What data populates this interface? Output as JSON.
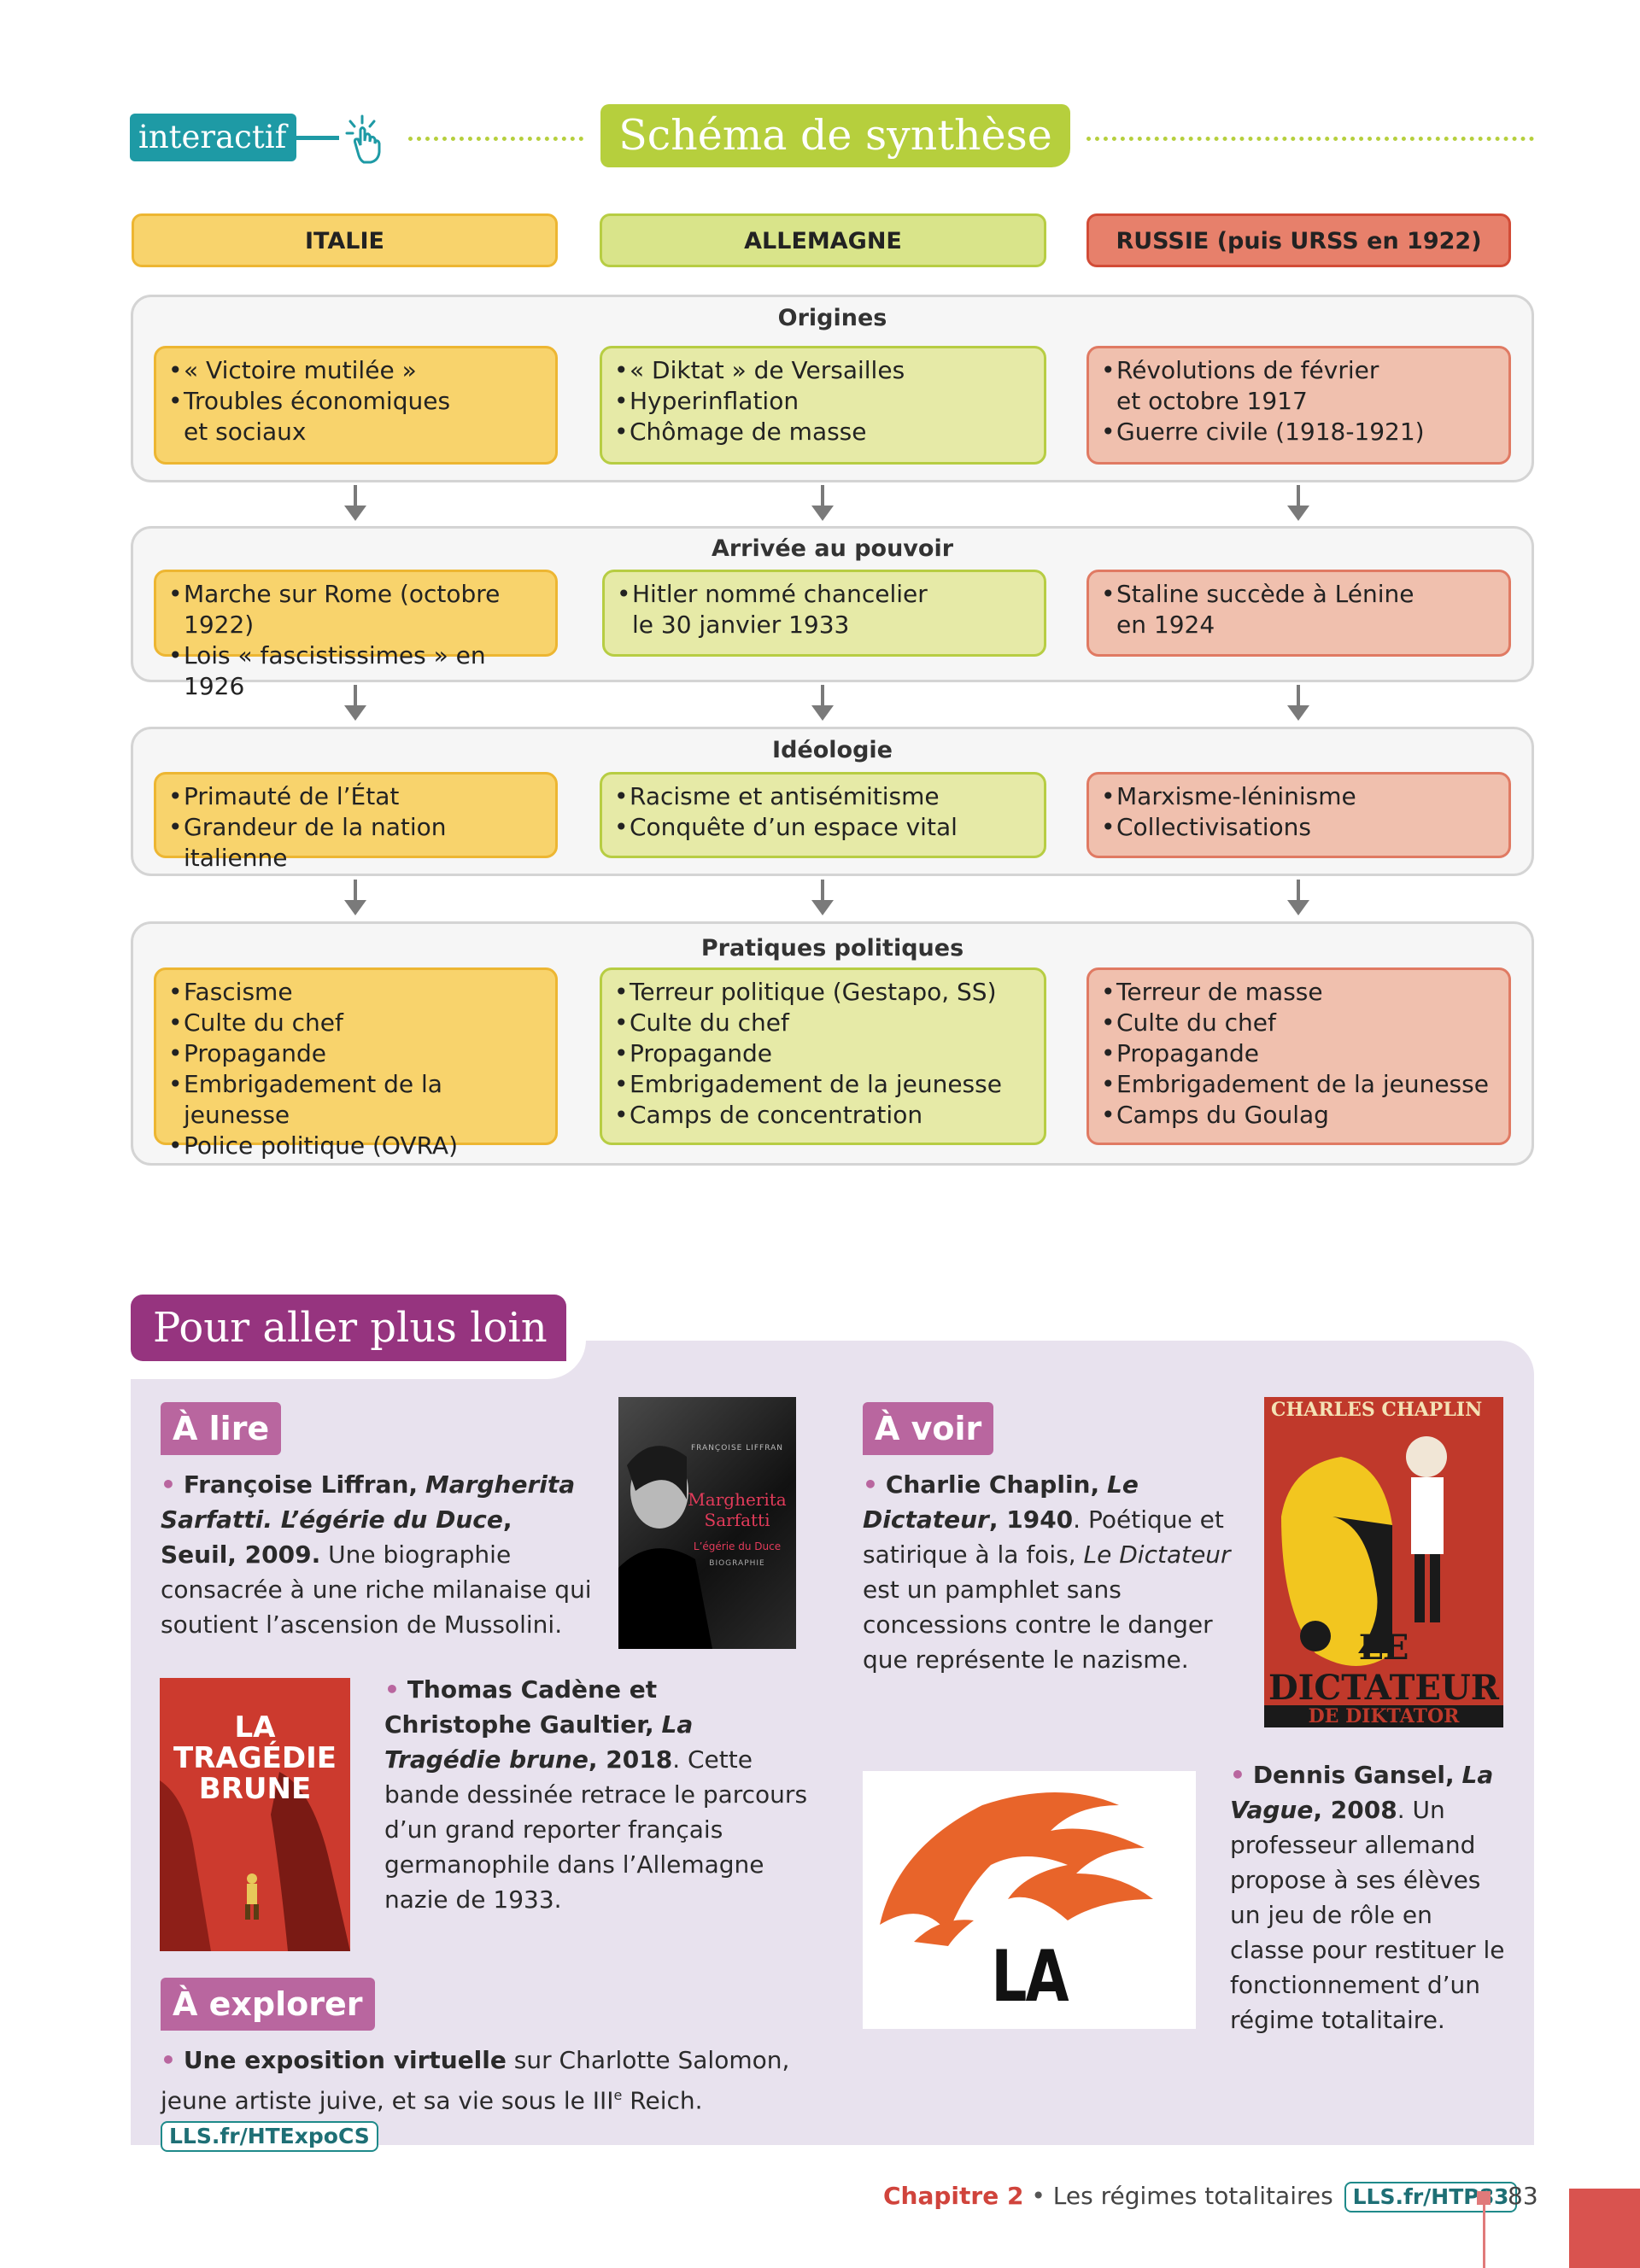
{
  "header": {
    "interactif_label": "interactif",
    "title": "Schéma de synthèse",
    "accent_color": "#b6cf3d",
    "interactif_color": "#1e9aa5"
  },
  "columns": {
    "italie": "ITALIE",
    "allemagne": "ALLEMAGNE",
    "russie": "RUSSIE (puis URSS en 1922)"
  },
  "sections": {
    "origines": {
      "title": "Origines",
      "italie": [
        "« Victoire mutilée »",
        "Troubles économiques \net sociaux"
      ],
      "allemagne": [
        "« Diktat » de Versailles",
        "Hyperinflation",
        "Chômage de masse"
      ],
      "russie": [
        "Révolutions de février\net octobre 1917",
        "Guerre civile (1918-1921)"
      ]
    },
    "arrivee": {
      "title": "Arrivée au pouvoir",
      "italie": [
        "Marche sur Rome (octobre 1922)",
        "Lois « fascistissimes » en 1926"
      ],
      "allemagne": [
        "Hitler nommé chancelier\nle 30 janvier 1933"
      ],
      "russie": [
        "Staline succède à Lénine\nen 1924"
      ]
    },
    "ideologie": {
      "title": "Idéologie",
      "italie": [
        "Primauté de l’État",
        "Grandeur de la nation italienne"
      ],
      "allemagne": [
        "Racisme et antisémitisme",
        "Conquête d’un espace vital"
      ],
      "russie": [
        "Marxisme-léninisme",
        "Collectivisations"
      ]
    },
    "pratiques": {
      "title": "Pratiques politiques",
      "italie": [
        "Fascisme",
        "Culte du chef",
        "Propagande",
        "Embrigadement de la jeunesse",
        "Police politique (OVRA)"
      ],
      "allemagne": [
        "Terreur politique (Gestapo, SS)",
        "Culte du chef",
        "Propagande",
        "Embrigadement de la jeunesse",
        "Camps de concentration"
      ],
      "russie": [
        "Terreur de masse",
        "Culte du chef",
        "Propagande",
        "Embrigadement de la jeunesse",
        "Camps du Goulag"
      ]
    }
  },
  "pour_aller_plus_loin": {
    "title": "Pour aller plus loin",
    "a_lire": {
      "label": "À lire",
      "book1": {
        "author": "Françoise Liffran,",
        "title": "Margherita Sarfatti. L’égérie du Duce",
        "publisher": ", Seuil, 2009.",
        "description": "Une biographie consacrée à une riche milanaise qui soutient l’ascension de Mussolini.",
        "cover_author": "FRANÇOISE LIFFRAN",
        "cover_title": "Margherita Sarfatti",
        "cover_subtitle": "L’égérie du Duce",
        "cover_genre": "BIOGRAPHIE"
      },
      "book2": {
        "author": "Thomas Cadène et Christophe Gaultier,",
        "title": "La Tragédie brune",
        "year": ", 2018",
        "description": "Cette bande dessinée retrace le parcours d’un grand reporter français germanophile dans l’Allemagne nazie de 1933.",
        "cover_title": "LA TRAGÉDIE BRUNE"
      }
    },
    "a_voir": {
      "label": "À voir",
      "film1": {
        "author": "Charlie Chaplin,",
        "title": "Le Dictateur",
        "year": ", 1940",
        "description_a": ". Poétique et satirique à la fois,",
        "description_title": "Le Dictateur",
        "description_b": "est un pamphlet sans concessions contre le danger que représente le nazisme.",
        "cover_top": "CHARLES CHAPLIN",
        "cover_title": "LE DICTATEUR",
        "cover_bottom": "DE DIKTATOR"
      },
      "film2": {
        "author": "Dennis Gansel,",
        "title": "La Vague",
        "year": ", 2008",
        "description": ". Un professeur allemand propose à ses élèves un jeu de rôle en classe pour restituer le fonctionnement d’un régime totalitaire.",
        "cover_title": "LA VAGUE"
      }
    },
    "a_explorer": {
      "label": "À explorer",
      "bold": "Une exposition virtuelle",
      "text_a": "sur Charlotte Salomon, jeune artiste juive, et sa vie sous le III",
      "sup": "e",
      "text_b": "Reich.",
      "link": "LLS.fr/HTExpoCS"
    }
  },
  "footer": {
    "chapter": "Chapitre 2",
    "separator": "•",
    "chapter_name": "Les régimes totalitaires",
    "link": "LLS.fr/HTP83",
    "page": "83"
  }
}
